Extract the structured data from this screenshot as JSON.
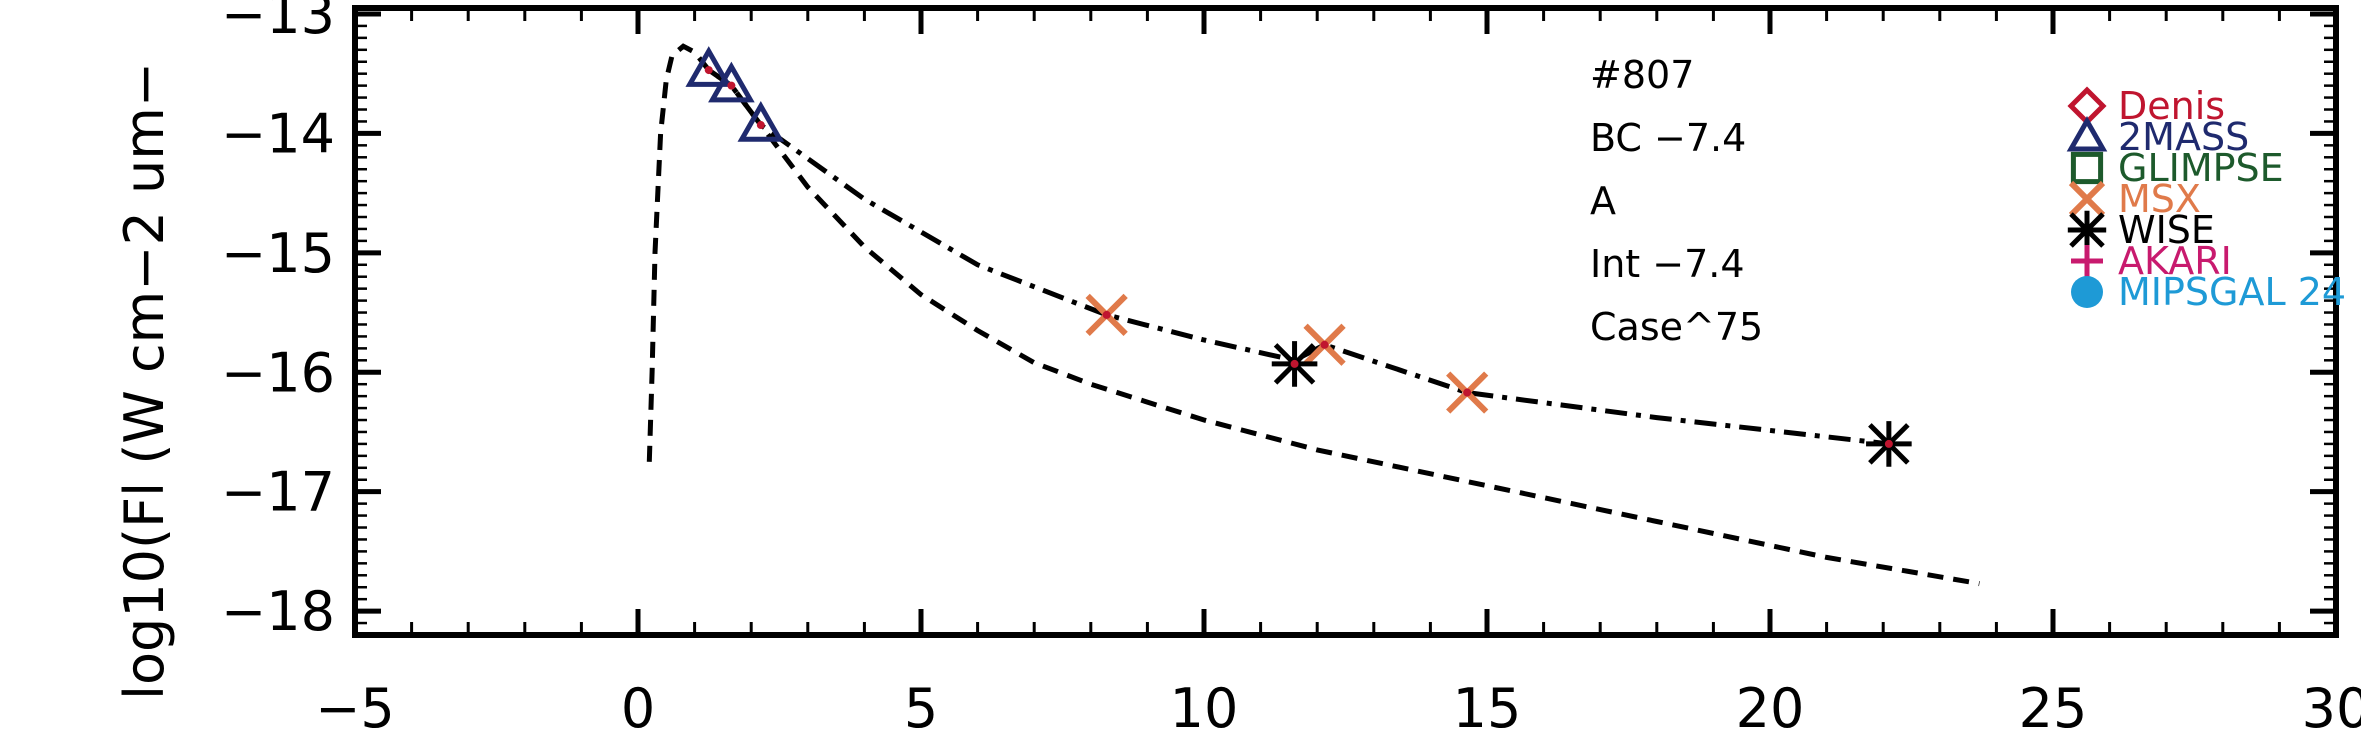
{
  "chart_data": {
    "type": "scatter",
    "title": "",
    "xlabel": "",
    "ylabel": "log10(Fl (W cm−2 um−",
    "xlim": [
      -5,
      30
    ],
    "ylim": [
      -18.2,
      -12.95
    ],
    "x_ticks": [
      -5,
      0,
      5,
      10,
      15,
      20,
      25,
      30
    ],
    "x_tick_labels": [
      "−5",
      "0",
      "5",
      "10",
      "15",
      "20",
      "25",
      "30"
    ],
    "y_ticks": [
      -13,
      -14,
      -15,
      -16,
      -17,
      -18
    ],
    "y_tick_labels": [
      "−13",
      "−14",
      "−15",
      "−16",
      "−17",
      "−18"
    ],
    "annotations": [
      "#807",
      "BC −7.4",
      "A",
      "Int −7.4",
      "Case^75"
    ],
    "legend": {
      "placement": "top-right",
      "entries": [
        {
          "label": "Denis",
          "symbol": "diamond",
          "color": "#c0152f"
        },
        {
          "label": "2MASS",
          "symbol": "triangle",
          "color": "#1f2a6e"
        },
        {
          "label": "GLIMPSE",
          "symbol": "square",
          "color": "#1d5a2c"
        },
        {
          "label": "MSX",
          "symbol": "cross",
          "color": "#e07a4a"
        },
        {
          "label": "WISE",
          "symbol": "asterisk",
          "color": "#000000"
        },
        {
          "label": "AKARI",
          "symbol": "plus",
          "color": "#c81a6e"
        },
        {
          "label": "MIPSGAL 24",
          "symbol": "circle",
          "color": "#1e9ad6"
        }
      ]
    },
    "series": [
      {
        "name": "2MASS",
        "symbol": "triangle",
        "color": "#1f2a6e",
        "x": [
          1.25,
          1.65,
          2.17
        ],
        "y": [
          -13.47,
          -13.6,
          -13.93
        ]
      },
      {
        "name": "MSX",
        "symbol": "cross",
        "color": "#e07a4a",
        "x": [
          8.28,
          12.13,
          14.65
        ],
        "y": [
          -15.52,
          -15.77,
          -16.17
        ]
      },
      {
        "name": "WISE",
        "symbol": "asterisk",
        "color": "#000000",
        "x": [
          11.6,
          22.1
        ],
        "y": [
          -15.93,
          -16.6
        ]
      }
    ],
    "curves": [
      {
        "style": "dash-dot",
        "color": "#000000",
        "x": [
          1.25,
          1.65,
          2.17,
          4.0,
          6.0,
          8.28,
          10.0,
          11.6,
          12.13,
          14.65,
          18.0,
          22.1
        ],
        "y": [
          -13.47,
          -13.6,
          -13.93,
          -14.55,
          -15.1,
          -15.52,
          -15.73,
          -15.9,
          -15.77,
          -16.17,
          -16.38,
          -16.6
        ]
      },
      {
        "style": "dashed",
        "color": "#000000",
        "x": [
          0.2,
          0.25,
          0.3,
          0.4,
          0.5,
          0.6,
          0.8,
          1.0,
          1.25,
          1.65,
          2.17,
          3.0,
          4.0,
          5.0,
          6.0,
          7.0,
          8.0,
          10.0,
          12.0,
          15.0,
          18.0,
          21.0,
          23.7
        ],
        "y": [
          -16.75,
          -16.0,
          -15.0,
          -14.0,
          -13.55,
          -13.35,
          -13.27,
          -13.32,
          -13.47,
          -13.6,
          -13.93,
          -14.45,
          -14.95,
          -15.35,
          -15.65,
          -15.92,
          -16.1,
          -16.4,
          -16.65,
          -16.95,
          -17.25,
          -17.55,
          -17.77
        ]
      }
    ]
  }
}
